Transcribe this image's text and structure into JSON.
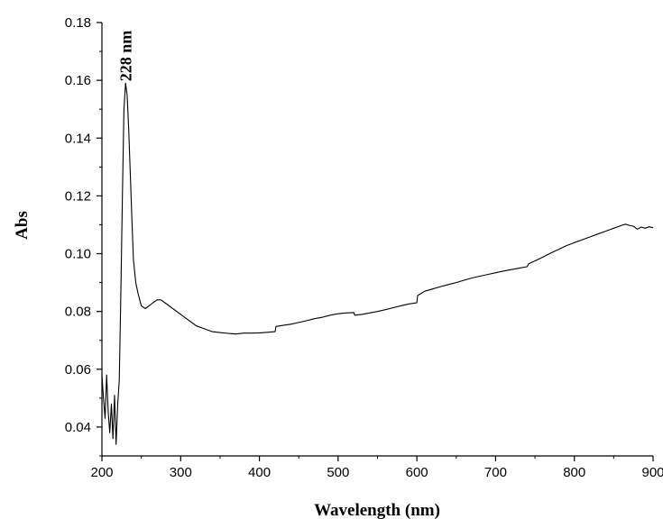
{
  "chart_data": {
    "type": "line",
    "title": "",
    "xlabel": "Wavelength (nm)",
    "ylabel": "Abs",
    "xlim": [
      200,
      900
    ],
    "ylim": [
      0.03,
      0.18
    ],
    "xticks": [
      200,
      300,
      400,
      500,
      600,
      700,
      800,
      900
    ],
    "yticks": [
      0.04,
      0.06,
      0.08,
      0.1,
      0.12,
      0.14,
      0.16,
      0.18
    ],
    "xtick_labels": [
      "200",
      "300",
      "400",
      "500",
      "600",
      "700",
      "800",
      "900"
    ],
    "ytick_labels": [
      "0.04",
      "0.06",
      "0.08",
      "0.10",
      "0.12",
      "0.14",
      "0.16",
      "0.18"
    ],
    "grid": false,
    "legend": "none",
    "annotation": {
      "text": "228 nm",
      "x": 228,
      "y": 0.159
    },
    "series": [
      {
        "color": "#000000",
        "x": [
          200,
          202,
          204,
          206,
          208,
          210,
          212,
          214,
          216,
          218,
          220,
          222,
          224,
          226,
          228,
          230,
          232,
          234,
          236,
          238,
          240,
          243,
          246,
          250,
          255,
          260,
          265,
          270,
          275,
          280,
          290,
          300,
          310,
          320,
          330,
          340,
          350,
          360,
          370,
          380,
          390,
          400,
          410,
          420,
          421,
          430,
          440,
          450,
          460,
          470,
          480,
          490,
          500,
          510,
          520,
          521,
          530,
          540,
          550,
          560,
          570,
          580,
          590,
          600,
          601,
          610,
          620,
          630,
          640,
          650,
          660,
          670,
          680,
          690,
          700,
          710,
          720,
          730,
          740,
          742,
          750,
          760,
          770,
          780,
          790,
          800,
          810,
          820,
          830,
          840,
          850,
          860,
          865,
          870,
          875,
          880,
          885,
          890,
          895,
          900
        ],
        "y": [
          0.058,
          0.05,
          0.043,
          0.058,
          0.045,
          0.038,
          0.048,
          0.036,
          0.051,
          0.034,
          0.048,
          0.056,
          0.085,
          0.12,
          0.15,
          0.159,
          0.155,
          0.143,
          0.128,
          0.112,
          0.098,
          0.09,
          0.086,
          0.082,
          0.081,
          0.082,
          0.083,
          0.084,
          0.084,
          0.083,
          0.081,
          0.079,
          0.077,
          0.075,
          0.074,
          0.073,
          0.0727,
          0.0724,
          0.0722,
          0.0725,
          0.0725,
          0.0726,
          0.0728,
          0.073,
          0.0748,
          0.0752,
          0.0756,
          0.0762,
          0.0768,
          0.0775,
          0.078,
          0.0787,
          0.0792,
          0.0795,
          0.0796,
          0.0787,
          0.079,
          0.0795,
          0.08,
          0.0806,
          0.0813,
          0.082,
          0.0826,
          0.083,
          0.0855,
          0.087,
          0.0878,
          0.0886,
          0.0893,
          0.09,
          0.0908,
          0.0916,
          0.0922,
          0.0928,
          0.0934,
          0.094,
          0.0945,
          0.095,
          0.0955,
          0.0965,
          0.0975,
          0.0988,
          0.1002,
          0.1015,
          0.1028,
          0.1038,
          0.1048,
          0.1058,
          0.1068,
          0.1078,
          0.1088,
          0.1098,
          0.1102,
          0.1098,
          0.1095,
          0.1085,
          0.1092,
          0.1088,
          0.1093,
          0.109
        ]
      }
    ]
  }
}
